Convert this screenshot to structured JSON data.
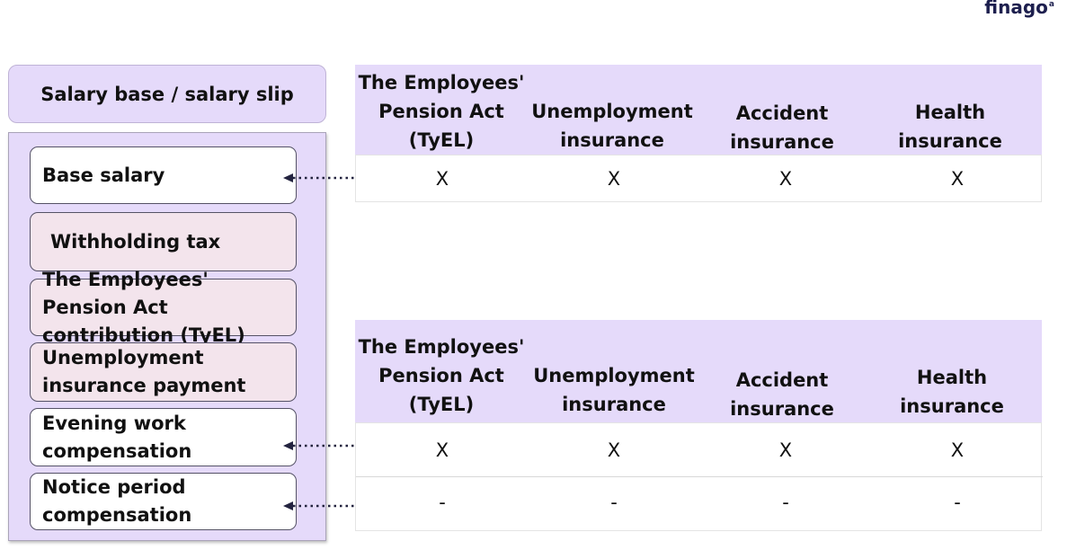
{
  "logo": {
    "text": "finago",
    "superscript": "a"
  },
  "salary_base": {
    "title": "Salary base / salary slip"
  },
  "salary_items": [
    {
      "label": "Base salary",
      "style": "white"
    },
    {
      "label": "Withholding tax",
      "style": "pink"
    },
    {
      "label": "The Employees' Pension Act contribution (TyEL)",
      "style": "pink"
    },
    {
      "label": "Unemployment insurance payment",
      "style": "pink"
    },
    {
      "label": "Evening work compensation",
      "style": "white"
    },
    {
      "label": "Notice period compensation",
      "style": "white"
    }
  ],
  "table_top": {
    "headers": [
      "The Employees' Pension Act (TyEL)",
      "Unemployment insurance",
      "Accident insurance",
      "Health insurance"
    ],
    "rows": [
      [
        "X",
        "X",
        "X",
        "X"
      ]
    ]
  },
  "table_bottom": {
    "headers": [
      "The Employees' Pension Act (TyEL)",
      "Unemployment insurance",
      "Accident insurance",
      "Health insurance"
    ],
    "rows": [
      [
        "X",
        "X",
        "X",
        "X"
      ],
      [
        "-",
        "-",
        "-",
        "-"
      ]
    ]
  },
  "colors": {
    "panel_fill": "#e5dafa",
    "pink_item_fill": "#f3e4ec",
    "arrow_color": "#23233f",
    "logo_color": "#1d1f4e"
  },
  "icons": {
    "arrow": "dotted-double-arrow-icon"
  }
}
